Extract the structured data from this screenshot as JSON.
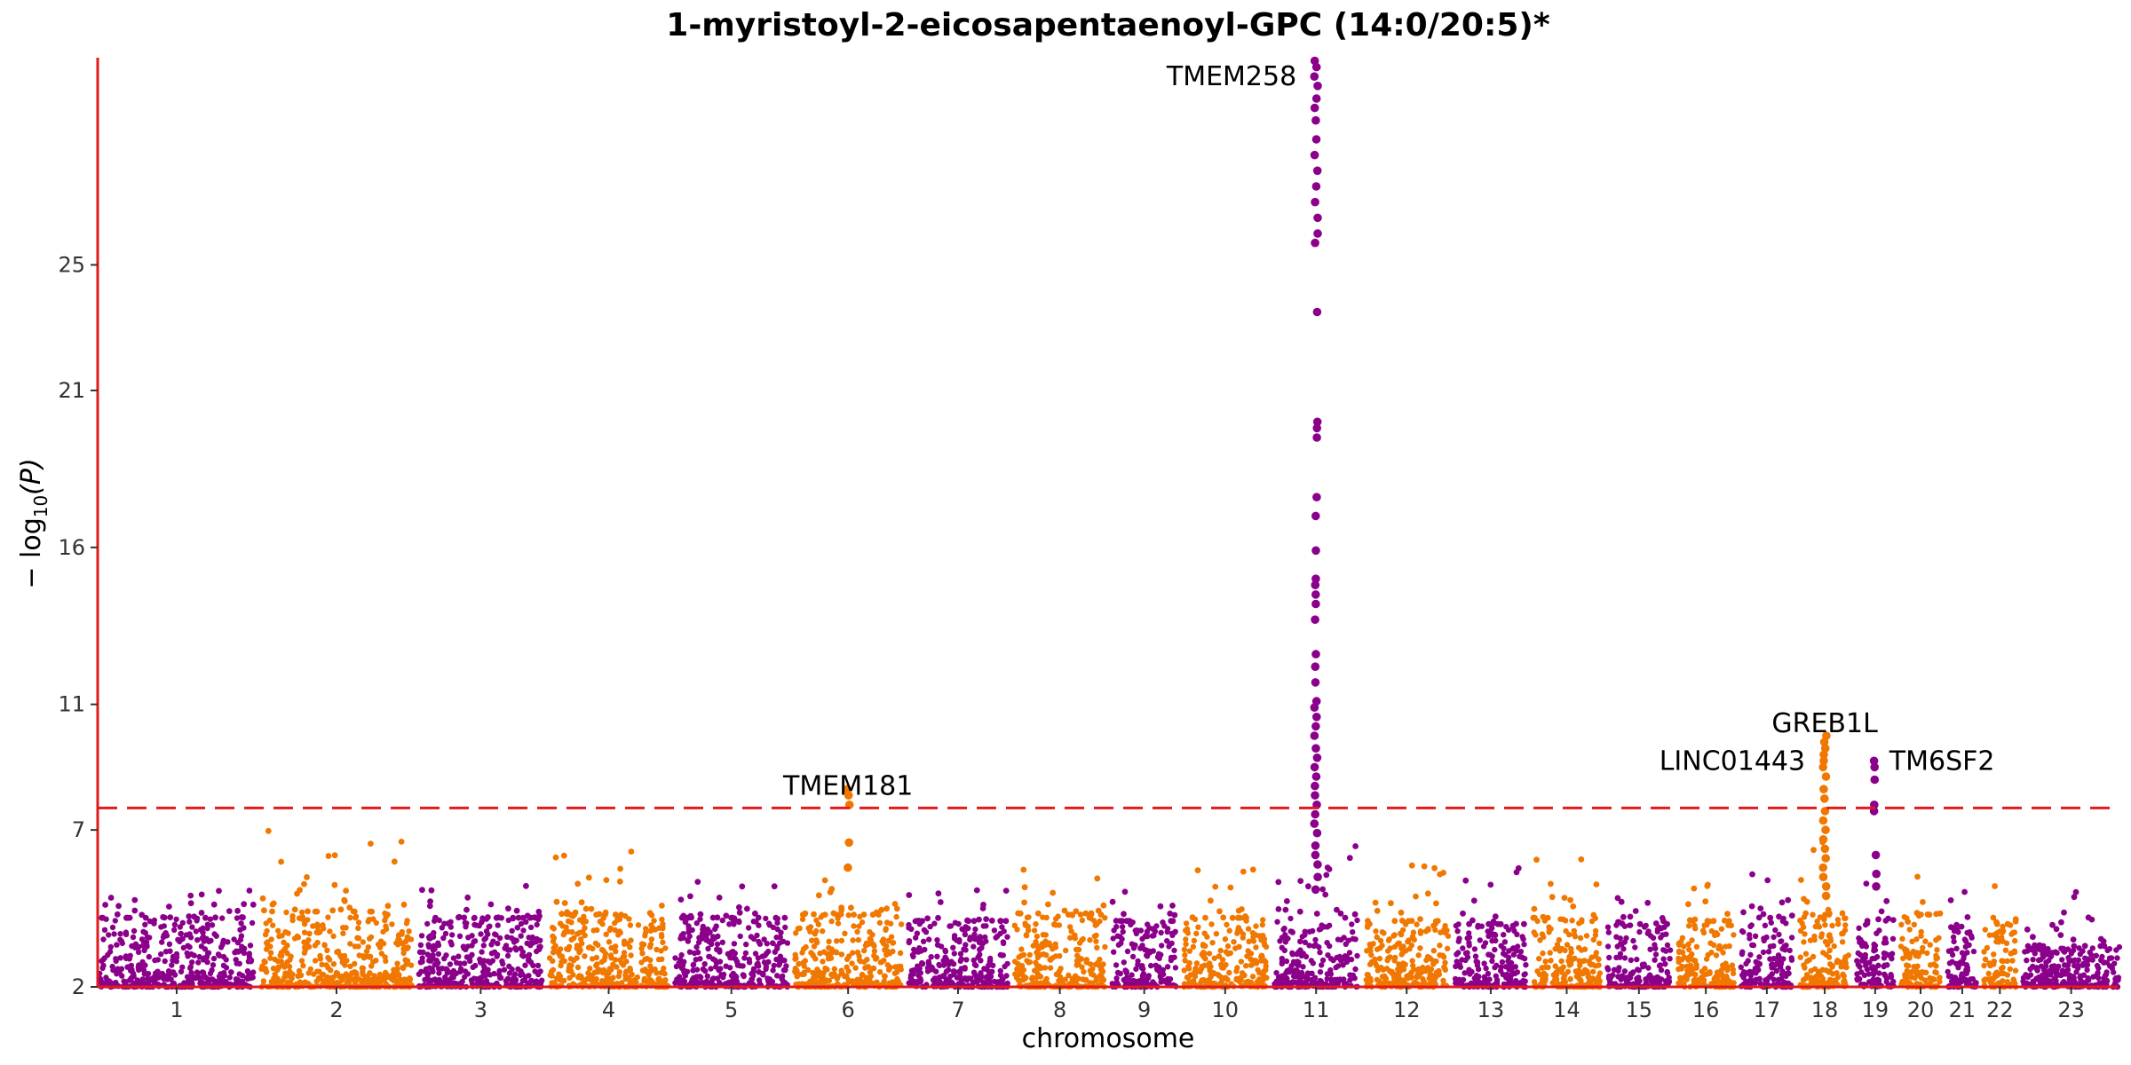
{
  "chart_data": {
    "type": "scatter",
    "subtype": "manhattan",
    "title": "1-myristoyl-2-eicosapentaenoyl-GPC (14:0/20:5)*",
    "xlabel": "chromosome",
    "ylabel": "− log10(P)",
    "ylabel_parts": {
      "prefix": "− log",
      "sub": "10",
      "suffix": "(P)"
    },
    "ylim": [
      2,
      31.6
    ],
    "yticks": [
      2,
      7,
      11,
      16,
      21,
      25
    ],
    "significance_threshold": 7.7,
    "threshold_style": "dashed",
    "colors": {
      "odd_chromosome": "#8B008B",
      "even_chromosome": "#F07800",
      "axis": "#E31A1C",
      "threshold": "#E31A1C"
    },
    "chromosomes": [
      {
        "label": "1",
        "width": 248,
        "base": 4.2,
        "peak": 5.2,
        "hits": []
      },
      {
        "label": "2",
        "width": 242,
        "base": 4.4,
        "peak": 7.1,
        "hits": []
      },
      {
        "label": "3",
        "width": 198,
        "base": 4.2,
        "peak": 5.7,
        "hits": []
      },
      {
        "label": "4",
        "width": 190,
        "base": 4.3,
        "peak": 6.6,
        "hits": []
      },
      {
        "label": "5",
        "width": 181,
        "base": 4.2,
        "peak": 5.6,
        "hits": []
      },
      {
        "label": "6",
        "width": 171,
        "base": 4.3,
        "peak": 5.5,
        "hits": [
          7.8,
          8.1,
          8.3,
          6.6,
          5.8
        ]
      },
      {
        "label": "7",
        "width": 159,
        "base": 4.1,
        "peak": 5.5,
        "hits": []
      },
      {
        "label": "8",
        "width": 145,
        "base": 4.3,
        "peak": 6.0,
        "hits": []
      },
      {
        "label": "9",
        "width": 103,
        "base": 4.1,
        "peak": 5.3,
        "hits": []
      },
      {
        "label": "10",
        "width": 134,
        "base": 4.2,
        "peak": 5.8,
        "hits": []
      },
      {
        "label": "11",
        "width": 135,
        "base": 4.2,
        "peak": 6.6,
        "hits": [
          31.5,
          31.3,
          31.0,
          30.7,
          30.3,
          30.0,
          29.6,
          29.0,
          28.5,
          28.0,
          27.5,
          27.0,
          26.5,
          26.0,
          25.7,
          23.5,
          20.0,
          19.8,
          19.5,
          17.6,
          17.0,
          15.9,
          15.0,
          14.8,
          14.5,
          14.2,
          13.7,
          12.6,
          12.2,
          11.7,
          11.1,
          10.9,
          10.6,
          10.3,
          10.0,
          9.6,
          9.3,
          9.0,
          8.7,
          8.4,
          8.1,
          7.8,
          7.5,
          7.2,
          6.9,
          6.5,
          6.2,
          5.9,
          5.5,
          5.1
        ]
      },
      {
        "label": "12",
        "width": 133,
        "base": 4.1,
        "peak": 5.9,
        "hits": []
      },
      {
        "label": "13",
        "width": 114,
        "base": 4.0,
        "peak": 5.8,
        "hits": []
      },
      {
        "label": "14",
        "width": 107,
        "base": 4.2,
        "peak": 6.2,
        "hits": []
      },
      {
        "label": "15",
        "width": 102,
        "base": 4.0,
        "peak": 5.1,
        "hits": []
      },
      {
        "label": "16",
        "width": 90,
        "base": 4.1,
        "peak": 5.3,
        "hits": []
      },
      {
        "label": "17",
        "width": 83,
        "base": 4.2,
        "peak": 6.1,
        "hits": []
      },
      {
        "label": "18",
        "width": 80,
        "base": 4.3,
        "peak": 6.8,
        "hits": [
          10.0,
          9.8,
          9.6,
          9.4,
          9.2,
          9.0,
          8.7,
          8.3,
          8.0,
          7.6,
          7.3,
          7.0,
          6.7,
          6.4,
          6.1,
          5.8,
          5.5,
          5.2,
          4.9
        ]
      },
      {
        "label": "19",
        "width": 59,
        "base": 4.1,
        "peak": 5.7,
        "hits": [
          9.2,
          9.0,
          8.6,
          7.8,
          7.6,
          6.2,
          5.6,
          5.2
        ]
      },
      {
        "label": "20",
        "width": 64,
        "base": 4.3,
        "peak": 6.9,
        "hits": []
      },
      {
        "label": "21",
        "width": 47,
        "base": 3.9,
        "peak": 5.6,
        "hits": []
      },
      {
        "label": "22",
        "width": 51,
        "base": 4.0,
        "peak": 5.5,
        "hits": []
      },
      {
        "label": "23",
        "width": 155,
        "base": 3.3,
        "peak": 5.2,
        "hits": []
      }
    ],
    "annotations": [
      {
        "text": "TMEM258",
        "chromosome": "11",
        "y": 31.0,
        "anchor": "end"
      },
      {
        "text": "TMEM181",
        "chromosome": "6",
        "y": 8.4,
        "anchor": "middle"
      },
      {
        "text": "GREB1L",
        "chromosome": "18",
        "y": 10.4,
        "anchor": "middle"
      },
      {
        "text": "LINC01443",
        "chromosome": "18",
        "y": 9.2,
        "anchor": "end"
      },
      {
        "text": "TM6SF2",
        "chromosome": "19",
        "y": 9.2,
        "anchor": "start"
      }
    ]
  }
}
